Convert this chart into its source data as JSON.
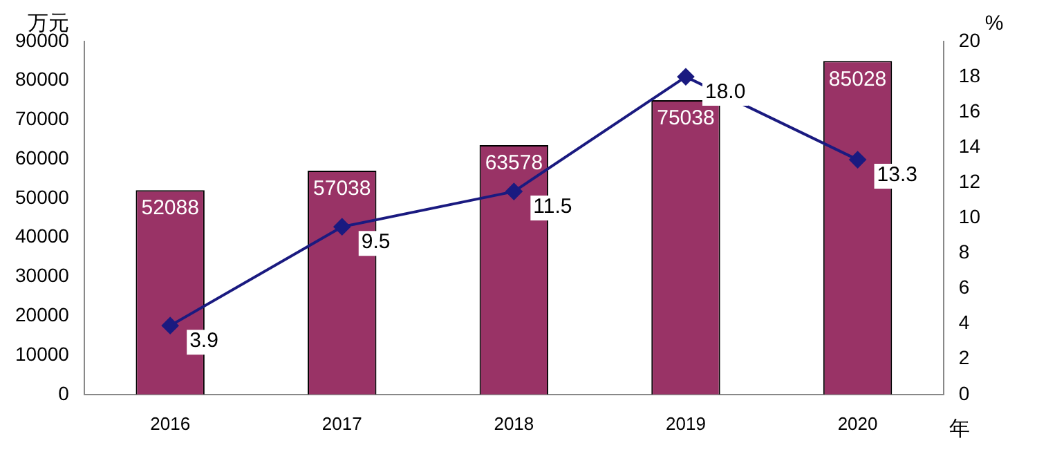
{
  "chart_data": {
    "type": "bar",
    "ylabel": "万元",
    "y2label": "%",
    "xlabel": "年",
    "categories": [
      "2016",
      "2017",
      "2018",
      "2019",
      "2020"
    ],
    "series": [
      {
        "type": "bar",
        "color": "#993366",
        "values": [
          52088,
          57038,
          63578,
          75038,
          85028
        ],
        "value_labels": [
          "52088",
          "57038",
          "63578",
          "75038",
          "85028"
        ]
      },
      {
        "type": "line",
        "axis": "y2",
        "color": "#1a1a80",
        "values": [
          3.9,
          9.5,
          11.5,
          18.0,
          13.3
        ],
        "value_labels": [
          "3.9",
          "9.5",
          "11.5",
          "18.0",
          "13.3"
        ]
      }
    ],
    "ylim": [
      0,
      90000
    ],
    "yticks": [
      0,
      10000,
      20000,
      30000,
      40000,
      50000,
      60000,
      70000,
      80000,
      90000
    ],
    "y2lim": [
      0,
      20
    ],
    "y2ticks": [
      0,
      2,
      4,
      6,
      8,
      10,
      12,
      14,
      16,
      18,
      20
    ],
    "grid": false,
    "legend": false,
    "marker": "diamond"
  }
}
